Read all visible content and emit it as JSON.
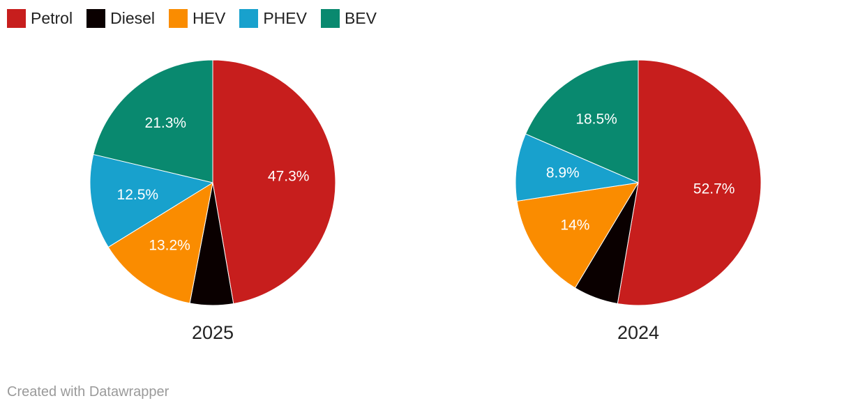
{
  "legend": {
    "items": [
      {
        "label": "Petrol",
        "color": "#c71e1d"
      },
      {
        "label": "Diesel",
        "color": "#0a0000"
      },
      {
        "label": "HEV",
        "color": "#fa8c00"
      },
      {
        "label": "PHEV",
        "color": "#18a1cd"
      },
      {
        "label": "BEV",
        "color": "#09896f"
      }
    ]
  },
  "chart_data": [
    {
      "type": "pie",
      "title": "2025",
      "slices": [
        {
          "name": "Petrol",
          "value": 47.3,
          "label": "47.3%",
          "color": "#c71e1d"
        },
        {
          "name": "Diesel",
          "value": 5.7,
          "label": "",
          "color": "#0a0000"
        },
        {
          "name": "HEV",
          "value": 13.2,
          "label": "13.2%",
          "color": "#fa8c00"
        },
        {
          "name": "PHEV",
          "value": 12.5,
          "label": "12.5%",
          "color": "#18a1cd"
        },
        {
          "name": "BEV",
          "value": 21.3,
          "label": "21.3%",
          "color": "#09896f"
        }
      ]
    },
    {
      "type": "pie",
      "title": "2024",
      "slices": [
        {
          "name": "Petrol",
          "value": 52.7,
          "label": "52.7%",
          "color": "#c71e1d"
        },
        {
          "name": "Diesel",
          "value": 5.9,
          "label": "",
          "color": "#0a0000"
        },
        {
          "name": "HEV",
          "value": 14,
          "label": "14%",
          "color": "#fa8c00"
        },
        {
          "name": "PHEV",
          "value": 8.9,
          "label": "8.9%",
          "color": "#18a1cd"
        },
        {
          "name": "BEV",
          "value": 18.5,
          "label": "18.5%",
          "color": "#09896f"
        }
      ]
    }
  ],
  "footer": {
    "credit": "Created with Datawrapper"
  }
}
